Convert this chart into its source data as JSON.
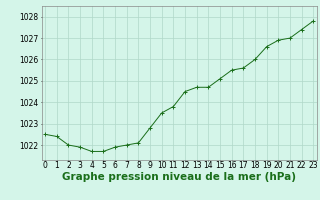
{
  "x": [
    0,
    1,
    2,
    3,
    4,
    5,
    6,
    7,
    8,
    9,
    10,
    11,
    12,
    13,
    14,
    15,
    16,
    17,
    18,
    19,
    20,
    21,
    22,
    23
  ],
  "y": [
    1022.5,
    1022.4,
    1022.0,
    1021.9,
    1021.7,
    1021.7,
    1021.9,
    1022.0,
    1022.1,
    1022.8,
    1023.5,
    1023.8,
    1024.5,
    1024.7,
    1024.7,
    1025.1,
    1025.5,
    1025.6,
    1026.0,
    1026.6,
    1026.9,
    1027.0,
    1027.4,
    1027.8
  ],
  "line_color": "#1a6e1a",
  "marker_color": "#1a6e1a",
  "bg_color": "#d4f5e9",
  "grid_color": "#b0d8c8",
  "title": "Graphe pression niveau de la mer (hPa)",
  "ylim_min": 1021.3,
  "ylim_max": 1028.5,
  "yticks": [
    1022,
    1023,
    1024,
    1025,
    1026,
    1027,
    1028
  ],
  "xticks": [
    0,
    1,
    2,
    3,
    4,
    5,
    6,
    7,
    8,
    9,
    10,
    11,
    12,
    13,
    14,
    15,
    16,
    17,
    18,
    19,
    20,
    21,
    22,
    23
  ],
  "title_fontsize": 7.5,
  "tick_fontsize": 5.5,
  "title_bold": true
}
